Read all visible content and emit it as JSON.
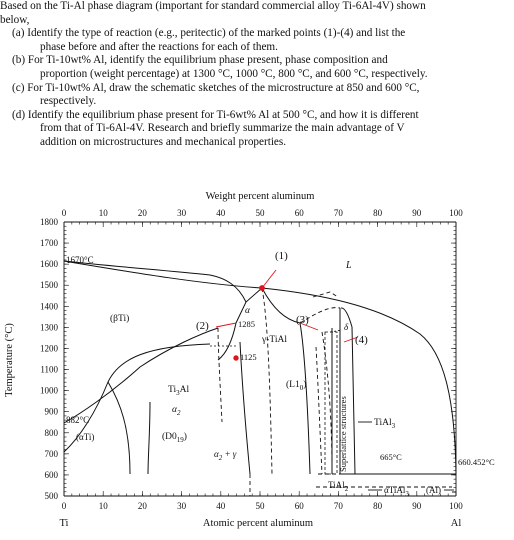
{
  "question": {
    "intro": [
      "Based on the Ti-Al phase diagram (important for standard commercial alloy Ti-6Al-4V) shown",
      "below,"
    ],
    "items": [
      {
        "lines": [
          "(a) Identify the type of reaction (e.g., peritectic) of the marked points (1)-(4) and list the",
          "phase before and after the reactions for each of them."
        ]
      },
      {
        "lines": [
          "(b) For Ti-10wt% Al, identify the equilibrium phase present, phase composition and",
          "proportion (weight percentage) at 1300 °C, 1000 °C, 800 °C, and 600 °C, respectively."
        ]
      },
      {
        "lines": [
          "(c) For Ti-10wt% Al, draw the schematic sketches of the microstructure at 850 and 600 °C,",
          "respectively."
        ]
      },
      {
        "lines": [
          "(d) Identify the equilibrium phase present for Ti-6wt% Al at 500 °C, and how it is different",
          "from that of Ti-6Al-4V. Research and briefly summarize the main advantage of V",
          "addition on microstructures and mechanical properties."
        ]
      }
    ]
  },
  "diagram": {
    "top_axis_title": "Weight percent aluminum",
    "bottom_axis_title": "Atomic percent aluminum",
    "y_axis_title": "Temperature (°C)",
    "left_end_label": "Ti",
    "right_end_label": "Al",
    "top_ticks": [
      "0",
      "10",
      "20",
      "30",
      "40",
      "50",
      "60",
      "70",
      "80",
      "90",
      "100"
    ],
    "bottom_ticks": [
      "0",
      "10",
      "20",
      "30",
      "40",
      "50",
      "60",
      "70",
      "80",
      "90",
      "100"
    ],
    "y_ticks": [
      "1800",
      "1700",
      "1600",
      "1500",
      "1400",
      "1300",
      "1200",
      "1100",
      "1000",
      "900",
      "800",
      "700",
      "600",
      "500"
    ],
    "labels": {
      "t1670": "1670°C",
      "t882": "882°C",
      "alpha_ti": "(αTi)",
      "beta_ti": "(βTi)",
      "ti3al": "Ti",
      "ti3al_sub": "3",
      "ti3al_tail": "Al",
      "alpha2": "α",
      "alpha2_sub": "2",
      "d019": "(D0",
      "d019_sub": "19",
      "d019_tail": ")",
      "alpha2_gamma": "α",
      "alpha2_gamma_sub": "2",
      "alpha2_gamma_tail": " + γ",
      "alpha": "α",
      "t1285": "1285",
      "t1125": "1125",
      "gamma_tial": "γ-TiAl",
      "l10": "(L1",
      "l10_sub": "0",
      "l10_tail": ")",
      "delta": "δ",
      "L": "L",
      "superlattice": "Superlattice structures",
      "tial3": "TiAl",
      "tial3_sub": "3",
      "tial2": "TiAl",
      "tial2_sub": "2",
      "alpha_tial3": "αTiAl",
      "alpha_tial3_sub": "3",
      "al_phase": "(Al)",
      "t665": "665°C",
      "t660": "660.452°C"
    },
    "markers": [
      "(1)",
      "(2)",
      "(3)",
      "(4)"
    ],
    "colors": {
      "marker": "#e0141b",
      "line": "#111111"
    }
  }
}
